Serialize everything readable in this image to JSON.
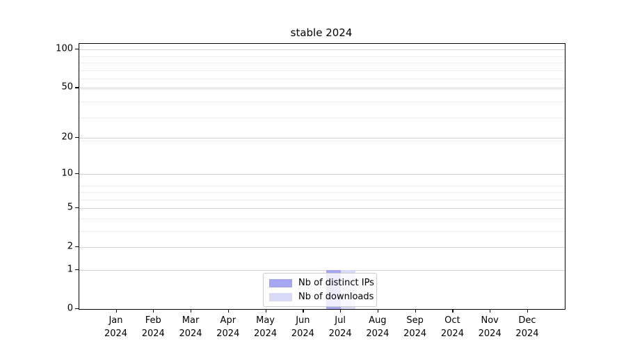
{
  "title": "stable 2024",
  "chart_data": {
    "type": "bar",
    "title": "stable 2024",
    "categories": [
      "Jan",
      "Feb",
      "Mar",
      "Apr",
      "May",
      "Jun",
      "Jul",
      "Aug",
      "Sep",
      "Oct",
      "Nov",
      "Dec"
    ],
    "category_year": "2024",
    "series": [
      {
        "name": "Nb of distinct IPs",
        "color": "#a5a5f0",
        "values": [
          0,
          0,
          0,
          0,
          0,
          0,
          1,
          0,
          0,
          0,
          0,
          0
        ]
      },
      {
        "name": "Nb of downloads",
        "color": "#d9d9f8",
        "values": [
          0,
          0,
          0,
          0,
          0,
          0,
          1,
          0,
          0,
          0,
          0,
          0
        ]
      }
    ],
    "y_scale": "log1p",
    "y_ticks": [
      0,
      1,
      2,
      5,
      10,
      20,
      50,
      100
    ],
    "y_minor_ticks": [
      3,
      4,
      6,
      7,
      8,
      19,
      29,
      39,
      49,
      59,
      69,
      79,
      89
    ],
    "ylim": [
      0,
      113
    ],
    "grid": "horizontal",
    "legend_position": "lower-center",
    "axis_color": "#000000",
    "grid_major_color": "#d2d2d2",
    "grid_minor_color": "#ededed"
  },
  "legend": {
    "items": [
      {
        "label": "Nb of distinct IPs"
      },
      {
        "label": "Nb of downloads"
      }
    ]
  }
}
